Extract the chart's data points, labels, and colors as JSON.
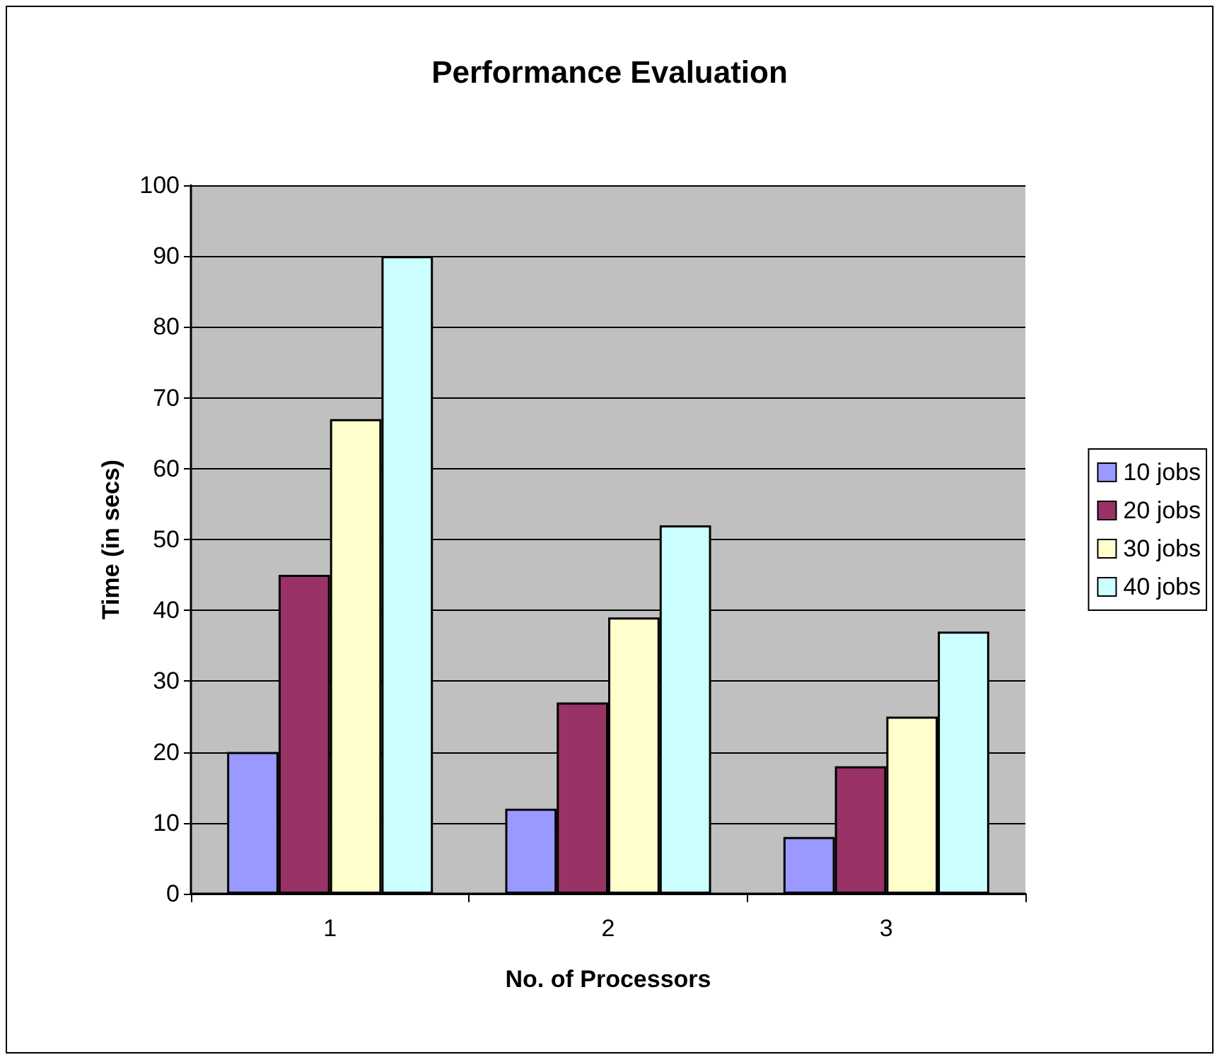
{
  "chart_data": {
    "type": "bar",
    "title": "Performance Evaluation",
    "xlabel": "No. of Processors",
    "ylabel": "Time (in secs)",
    "categories": [
      "1",
      "2",
      "3"
    ],
    "series": [
      {
        "name": "10 jobs",
        "color": "#9999ff",
        "values": [
          20,
          12,
          8
        ]
      },
      {
        "name": "20 jobs",
        "color": "#993366",
        "values": [
          45,
          27,
          18
        ]
      },
      {
        "name": "30 jobs",
        "color": "#ffffcc",
        "values": [
          67,
          39,
          25
        ]
      },
      {
        "name": "40 jobs",
        "color": "#ccffff",
        "values": [
          90,
          52,
          37
        ]
      }
    ],
    "ylim": [
      0,
      100
    ],
    "yticks": [
      0,
      10,
      20,
      30,
      40,
      50,
      60,
      70,
      80,
      90,
      100
    ],
    "grid": "y",
    "legend": "right"
  }
}
